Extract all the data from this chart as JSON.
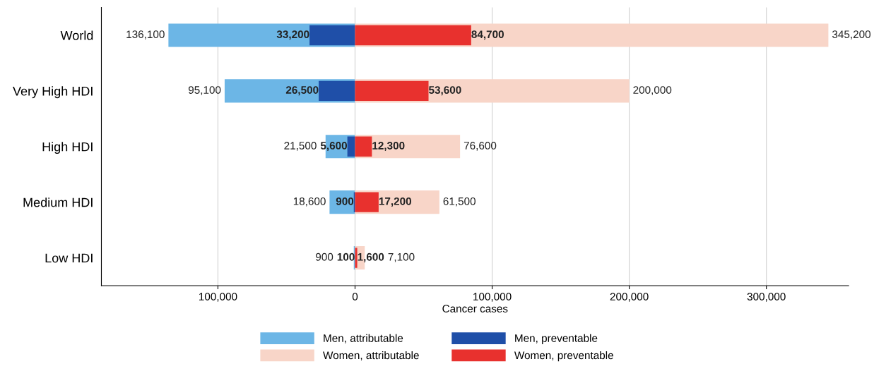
{
  "chart_data": {
    "type": "bar",
    "orientation": "horizontal",
    "xlabel": "Cancer cases",
    "categories": [
      "World",
      "Very High HDI",
      "High HDI",
      "Medium HDI",
      "Low HDI"
    ],
    "series": [
      {
        "name": "Men, attributable",
        "color": "#6cb6e6",
        "values": [
          136100,
          95100,
          21500,
          18600,
          900
        ],
        "base": [
          -136100,
          -95100,
          -21500,
          -18600,
          -900
        ],
        "value_labels": [
          "136,100",
          "95,100",
          "21,500",
          "18,600",
          "900"
        ]
      },
      {
        "name": "Women, attributable",
        "color": "#f8d5c8",
        "values": [
          345200,
          200000,
          76600,
          61500,
          7100
        ],
        "value_labels": [
          "345,200",
          "200,000",
          "76,600",
          "61,500",
          "7,100"
        ]
      },
      {
        "name": "Men, preventable",
        "color": "#1f4fa8",
        "values": [
          33200,
          26500,
          5600,
          900,
          100
        ],
        "base": [
          -33200,
          -26500,
          -5600,
          -900,
          -100
        ],
        "value_labels": [
          "33,200",
          "26,500",
          "5,600",
          "900",
          "100"
        ]
      },
      {
        "name": "Women, preventable",
        "color": "#e8312e",
        "values": [
          84700,
          53600,
          12300,
          17200,
          1600
        ],
        "value_labels": [
          "84,700",
          "53,600",
          "12,300",
          "17,200",
          "1,600"
        ]
      }
    ],
    "xlim": [
      -185000,
      360000
    ],
    "xticks": [
      {
        "value": -100000,
        "label": "100,000"
      },
      0,
      {
        "value": 100000,
        "label": "100,000"
      },
      {
        "value": 200000,
        "label": "200,000"
      },
      {
        "value": 300000,
        "label": "300,000"
      }
    ],
    "grid": "x",
    "legend": "bottom"
  }
}
